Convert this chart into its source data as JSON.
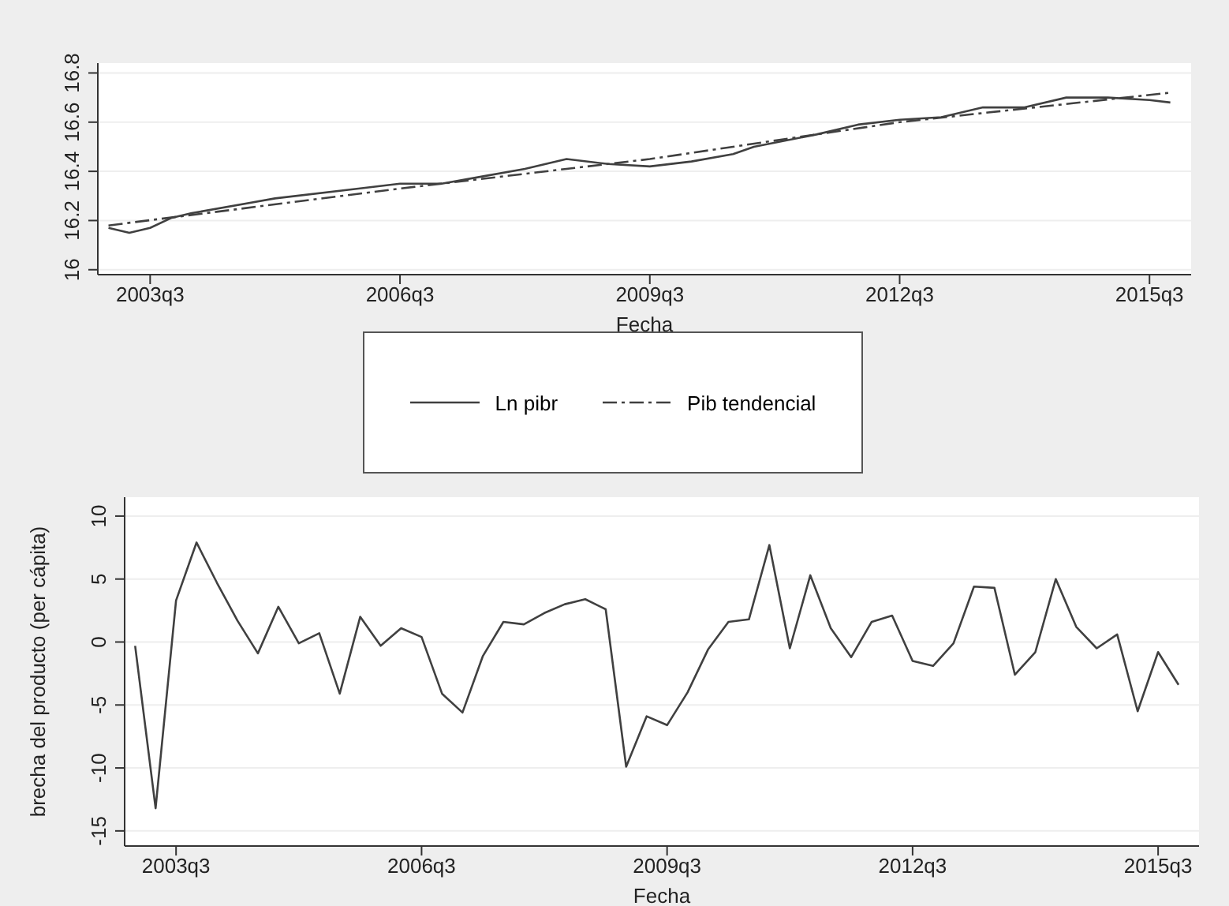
{
  "chart_data": [
    {
      "type": "line",
      "xlabel": "Fecha",
      "xlim": [
        "2002-11-15",
        "2016-01-01"
      ],
      "xticks": [
        {
          "value": "2003-07",
          "label": "2003q3"
        },
        {
          "value": "2006-07",
          "label": "2006q3"
        },
        {
          "value": "2009-07",
          "label": "2009q3"
        },
        {
          "value": "2012-07",
          "label": "2012q3"
        },
        {
          "value": "2015-07",
          "label": "2015q3"
        }
      ],
      "ylim": [
        15.98,
        16.84
      ],
      "yticks": [
        16,
        16.2,
        16.4,
        16.6,
        16.8
      ],
      "grid": "y",
      "legend": "bottom",
      "series": [
        {
          "name": "Ln pibr",
          "color": "#404040",
          "line_style": "solid",
          "x": [
            "2003-01",
            "2003-04",
            "2003-07",
            "2003-10",
            "2004-01",
            "2005-01",
            "2006-01",
            "2006-07",
            "2007-01",
            "2007-07",
            "2008-01",
            "2008-07",
            "2009-01",
            "2009-07",
            "2010-01",
            "2010-07",
            "2010-10",
            "2011-07",
            "2012-01",
            "2012-07",
            "2013-01",
            "2013-07",
            "2014-01",
            "2014-07",
            "2015-01",
            "2015-07",
            "2015-10"
          ],
          "values": [
            16.17,
            16.15,
            16.17,
            16.21,
            16.23,
            16.29,
            16.33,
            16.35,
            16.35,
            16.38,
            16.41,
            16.45,
            16.43,
            16.42,
            16.44,
            16.47,
            16.5,
            16.55,
            16.59,
            16.61,
            16.62,
            16.66,
            16.66,
            16.7,
            16.7,
            16.69,
            16.68
          ]
        },
        {
          "name": "Pib tendencial",
          "color": "#404040",
          "line_style": "dashed",
          "x": [
            "2003-01",
            "2006-07",
            "2009-07",
            "2012-07",
            "2015-10"
          ],
          "values": [
            16.18,
            16.33,
            16.45,
            16.6,
            16.72
          ]
        }
      ]
    },
    {
      "type": "line",
      "xlabel": "Fecha",
      "ylabel": "brecha del producto (per cápita)",
      "xlim": [
        "2002-11-15",
        "2016-01-01"
      ],
      "xticks": [
        {
          "value": "2003-07",
          "label": "2003q3"
        },
        {
          "value": "2006-07",
          "label": "2006q3"
        },
        {
          "value": "2009-07",
          "label": "2009q3"
        },
        {
          "value": "2012-07",
          "label": "2012q3"
        },
        {
          "value": "2015-07",
          "label": "2015q3"
        }
      ],
      "ylim": [
        -16.2,
        11.5
      ],
      "yticks": [
        -15,
        -10,
        -5,
        0,
        5,
        10
      ],
      "grid": "y",
      "legend": false,
      "series": [
        {
          "color": "#404040",
          "line_style": "solid",
          "x": [
            "2003-01",
            "2003-04",
            "2003-07",
            "2003-10",
            "2004-01",
            "2004-04",
            "2004-07",
            "2004-10",
            "2005-01",
            "2005-04",
            "2005-07",
            "2005-10",
            "2006-01",
            "2006-04",
            "2006-07",
            "2006-10",
            "2007-01",
            "2007-04",
            "2007-07",
            "2007-10",
            "2008-01",
            "2008-04",
            "2008-07",
            "2008-10",
            "2009-01",
            "2009-04",
            "2009-07",
            "2009-10",
            "2010-01",
            "2010-04",
            "2010-07",
            "2010-10",
            "2011-01",
            "2011-04",
            "2011-07",
            "2011-10",
            "2012-01",
            "2012-04",
            "2012-07",
            "2012-10",
            "2013-01",
            "2013-04",
            "2013-07",
            "2013-10",
            "2014-01",
            "2014-04",
            "2014-07",
            "2014-10",
            "2015-01",
            "2015-04",
            "2015-07",
            "2015-10"
          ],
          "values": [
            -0.3,
            -13.2,
            3.3,
            7.9,
            4.7,
            1.7,
            -0.9,
            2.8,
            -0.1,
            0.7,
            -4.1,
            2.0,
            -0.3,
            1.1,
            0.4,
            -4.1,
            -5.6,
            -1.1,
            1.6,
            1.4,
            2.3,
            3.0,
            3.4,
            2.6,
            -9.9,
            -5.9,
            -6.6,
            -4.0,
            -0.6,
            1.6,
            1.8,
            7.7,
            -0.5,
            5.3,
            1.1,
            -1.2,
            1.6,
            2.1,
            -1.5,
            -1.9,
            -0.1,
            4.4,
            4.3,
            -2.6,
            -0.8,
            5.0,
            1.2,
            -0.5,
            0.6,
            -5.5,
            -0.8,
            -3.4
          ]
        }
      ]
    }
  ]
}
